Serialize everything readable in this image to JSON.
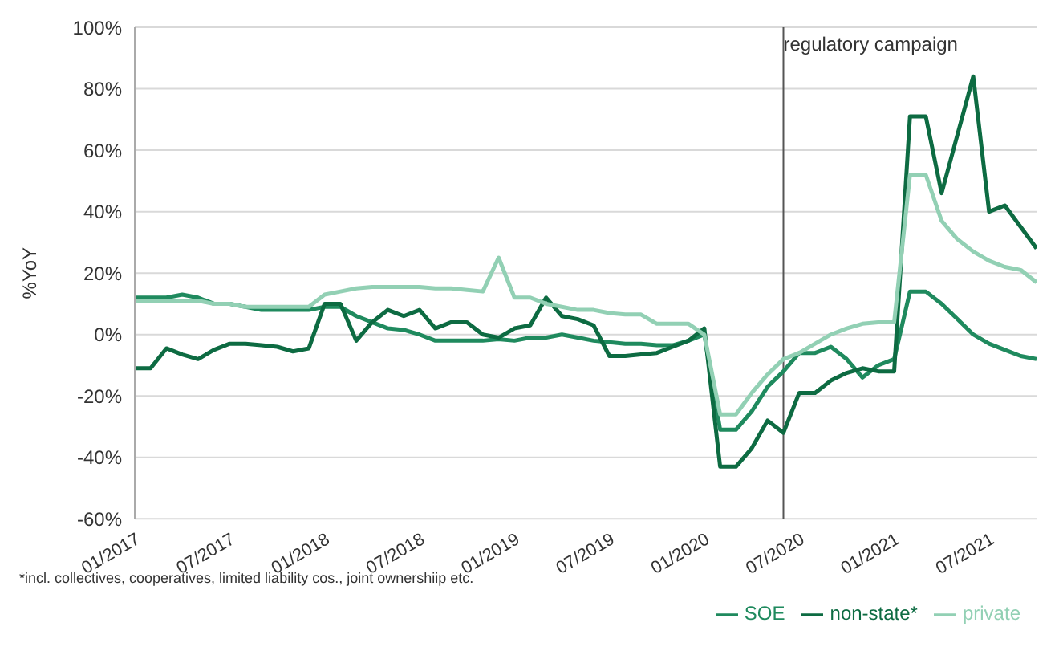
{
  "chart_data": {
    "type": "line",
    "ylabel": "%YoY",
    "x": [
      "2017-01",
      "2017-02",
      "2017-03",
      "2017-04",
      "2017-05",
      "2017-06",
      "2017-07",
      "2017-08",
      "2017-09",
      "2017-10",
      "2017-11",
      "2017-12",
      "2018-01",
      "2018-02",
      "2018-03",
      "2018-04",
      "2018-05",
      "2018-06",
      "2018-07",
      "2018-08",
      "2018-09",
      "2018-10",
      "2018-11",
      "2018-12",
      "2019-01",
      "2019-02",
      "2019-03",
      "2019-04",
      "2019-05",
      "2019-06",
      "2019-07",
      "2019-08",
      "2019-09",
      "2019-10",
      "2019-11",
      "2019-12",
      "2020-01",
      "2020-02",
      "2020-03",
      "2020-04",
      "2020-05",
      "2020-06",
      "2020-07",
      "2020-08",
      "2020-09",
      "2020-10",
      "2020-11",
      "2020-12",
      "2021-01",
      "2021-02",
      "2021-03",
      "2021-04",
      "2021-05",
      "2021-06",
      "2021-07",
      "2021-08",
      "2021-09",
      "2021-10"
    ],
    "series": [
      {
        "name": "SOE",
        "color": "#1f8a5e",
        "values": [
          12,
          12,
          12,
          13,
          12,
          10,
          10,
          9,
          8,
          8,
          8,
          8,
          9,
          9,
          6,
          4,
          2,
          1.5,
          0,
          -2,
          -2,
          -2,
          -2,
          -1.5,
          -2,
          -1,
          -1,
          0,
          -1,
          -2,
          -2.5,
          -3,
          -3,
          -3.5,
          -3.5,
          -2,
          0,
          -31,
          -31,
          -25,
          -17,
          -12,
          -6,
          -6,
          -4,
          -8,
          -14,
          -10,
          -8,
          14,
          14,
          10,
          5,
          0,
          -3,
          -5,
          -7,
          -8
        ]
      },
      {
        "name": "non-state*",
        "color": "#0d6b42",
        "values": [
          -11,
          -11,
          -4.5,
          -6.5,
          -8,
          -5,
          -3,
          -3,
          -3.5,
          -4,
          -5.5,
          -4.5,
          10,
          10,
          -2,
          4,
          8,
          6,
          8,
          2,
          4,
          4,
          0,
          -1,
          2,
          3,
          12,
          6,
          5,
          3,
          -7,
          -7,
          -6.5,
          -6,
          -4,
          -2,
          2,
          -43,
          -43,
          -37,
          -28,
          -32,
          -19,
          -19,
          -15,
          -12.5,
          -11,
          -12,
          -12,
          71,
          71,
          46,
          65,
          84,
          40,
          42,
          35,
          28
        ]
      },
      {
        "name": "private",
        "color": "#92d0b4",
        "values": [
          11,
          11,
          11,
          11,
          11,
          10,
          10,
          9,
          9,
          9,
          9,
          9,
          13,
          14,
          15,
          15.5,
          15.5,
          15.5,
          15.5,
          15,
          15,
          14.5,
          14,
          25,
          12,
          12,
          10,
          9,
          8,
          8,
          7,
          6.5,
          6.5,
          3.5,
          3.5,
          3.5,
          0,
          -26,
          -26,
          -19,
          -13,
          -8,
          -6,
          -3,
          0,
          2,
          3.5,
          4,
          4,
          52,
          52,
          37,
          31,
          27,
          24,
          22,
          21,
          17
        ]
      }
    ],
    "xlim": [
      "2017-01",
      "2021-10"
    ],
    "xticks": [
      {
        "value": "2017-01",
        "label": "01/2017"
      },
      {
        "value": "2017-07",
        "label": "07/2017"
      },
      {
        "value": "2018-01",
        "label": "01/2018"
      },
      {
        "value": "2018-07",
        "label": "07/2018"
      },
      {
        "value": "2019-01",
        "label": "01/2019"
      },
      {
        "value": "2019-07",
        "label": "07/2019"
      },
      {
        "value": "2020-01",
        "label": "01/2020"
      },
      {
        "value": "2020-07",
        "label": "07/2020"
      },
      {
        "value": "2021-01",
        "label": "01/2021"
      },
      {
        "value": "2021-07",
        "label": "07/2021"
      }
    ],
    "ylim": [
      -60,
      100
    ],
    "yticks": [
      {
        "value": -60,
        "label": "-60%"
      },
      {
        "value": -40,
        "label": "-40%"
      },
      {
        "value": -20,
        "label": "-20%"
      },
      {
        "value": 0,
        "label": "0%"
      },
      {
        "value": 20,
        "label": "20%"
      },
      {
        "value": 40,
        "label": "40%"
      },
      {
        "value": 60,
        "label": "60%"
      },
      {
        "value": 80,
        "label": "80%"
      },
      {
        "value": 100,
        "label": "100%"
      }
    ],
    "grid": "y",
    "legend": "bottom right",
    "marker": "none",
    "line_style": "solid",
    "ref_lines": [
      {
        "axis": "x",
        "value": "2020-06",
        "label": "regulatory campaign",
        "color": "#555555"
      }
    ],
    "annotations": [
      "*incl. collectives, cooperatives, limited liability cos., joint ownershiip etc."
    ]
  }
}
